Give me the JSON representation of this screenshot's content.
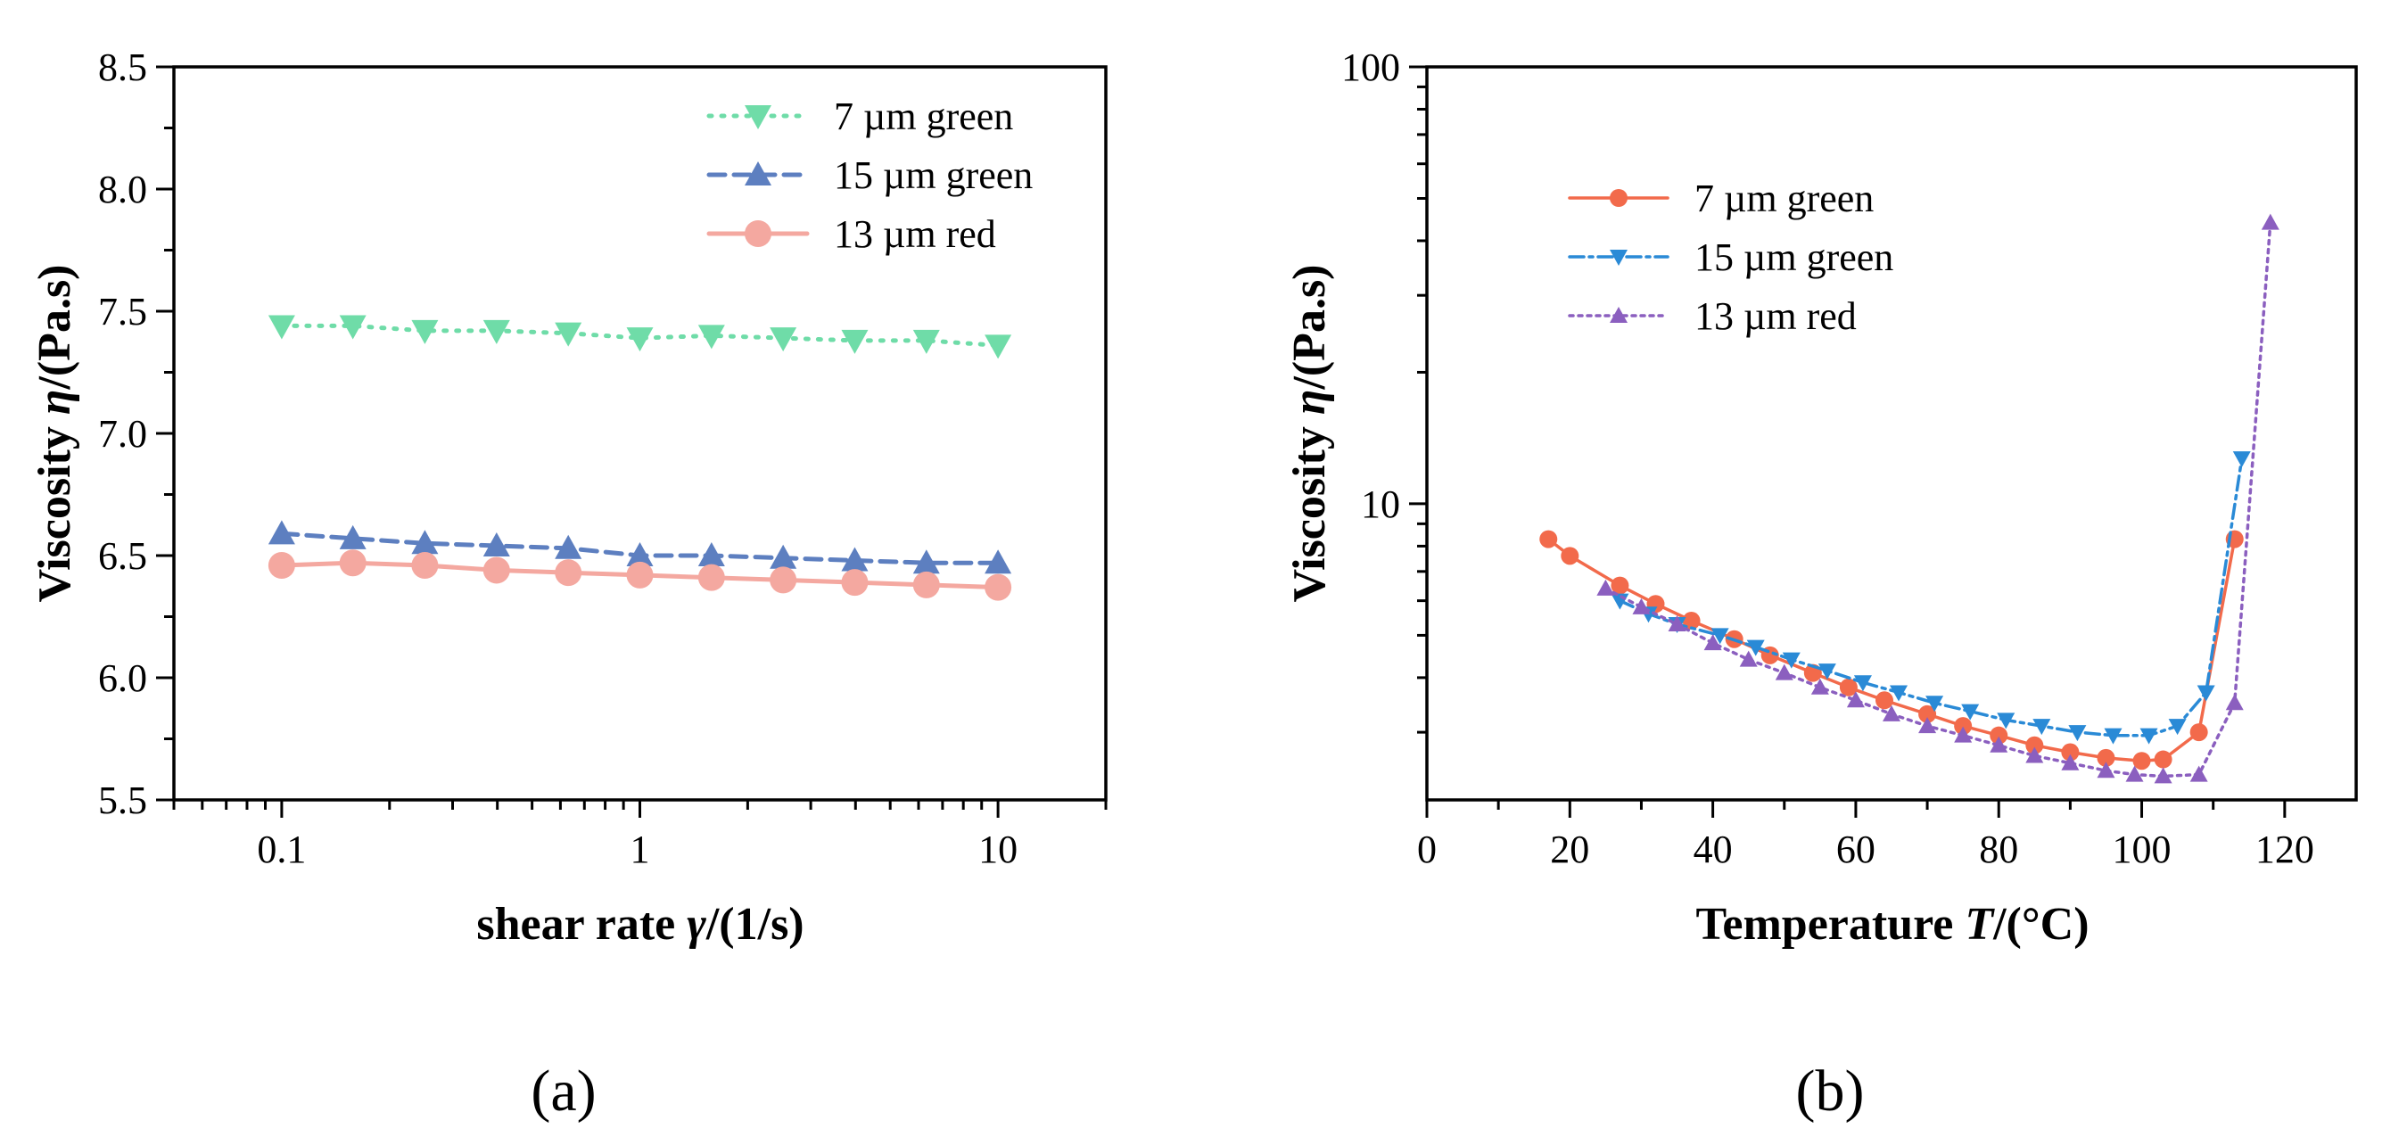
{
  "chart_data": [
    {
      "type": "line",
      "panel_label": "(a)",
      "xscale": "log",
      "xlim": [
        0.05,
        20
      ],
      "ylim": [
        5.5,
        8.5
      ],
      "xticks": [
        0.1,
        1,
        10
      ],
      "xtick_labels": [
        "0.1",
        "1",
        "10"
      ],
      "yticks": [
        5.5,
        6.0,
        6.5,
        7.0,
        7.5,
        8.0,
        8.5
      ],
      "ytick_labels": [
        "5.5",
        "6.0",
        "6.5",
        "7.0",
        "7.5",
        "8.0",
        "8.5"
      ],
      "xlabel": {
        "prefix": "shear rate ",
        "symbol": "γ",
        "suffix": "/(1/s)"
      },
      "ylabel": {
        "prefix": "Viscosity ",
        "symbol": "η",
        "suffix": "/(Pa.s)"
      },
      "legend_position": "top-right",
      "series": [
        {
          "name": "7 µm green",
          "color": "#6fdca8",
          "dash": "3 11",
          "marker": "tri-down",
          "x": [
            0.1,
            0.158,
            0.251,
            0.398,
            0.631,
            1.0,
            1.585,
            2.512,
            3.981,
            6.31,
            10.0
          ],
          "y": [
            7.44,
            7.44,
            7.42,
            7.42,
            7.41,
            7.39,
            7.4,
            7.39,
            7.38,
            7.38,
            7.36
          ]
        },
        {
          "name": "15 µm green",
          "color": "#5d7fc0",
          "dash": "18 10",
          "marker": "tri-up",
          "x": [
            0.1,
            0.158,
            0.251,
            0.398,
            0.631,
            1.0,
            1.585,
            2.512,
            3.981,
            6.31,
            10.0
          ],
          "y": [
            6.59,
            6.57,
            6.55,
            6.54,
            6.53,
            6.5,
            6.5,
            6.49,
            6.48,
            6.47,
            6.47
          ]
        },
        {
          "name": "13 µm red",
          "color": "#f4a8a0",
          "dash": "",
          "marker": "circle",
          "x": [
            0.1,
            0.158,
            0.251,
            0.398,
            0.631,
            1.0,
            1.585,
            2.512,
            3.981,
            6.31,
            10.0
          ],
          "y": [
            6.46,
            6.47,
            6.46,
            6.44,
            6.43,
            6.42,
            6.41,
            6.4,
            6.39,
            6.38,
            6.37
          ]
        }
      ]
    },
    {
      "type": "line",
      "panel_label": "(b)",
      "yscale": "log",
      "xlim": [
        0,
        130
      ],
      "ylim": [
        2.1,
        100
      ],
      "xticks": [
        0,
        20,
        40,
        60,
        80,
        100,
        120
      ],
      "xtick_labels": [
        "0",
        "20",
        "40",
        "60",
        "80",
        "100",
        "120"
      ],
      "yticks": [
        10,
        100
      ],
      "ytick_labels": [
        "10",
        "100"
      ],
      "xlabel": {
        "prefix": "Temperature ",
        "symbol": "T",
        "suffix": "/(°C)"
      },
      "ylabel": {
        "prefix": "Viscosity ",
        "symbol": "η",
        "suffix": "/(Pa.s)"
      },
      "legend_position": "top-left",
      "series": [
        {
          "name": "7 µm green",
          "color": "#f26a4b",
          "dash": "",
          "marker": "circle",
          "x": [
            17,
            20,
            27,
            32,
            37,
            43,
            48,
            54,
            59,
            64,
            70,
            75,
            80,
            85,
            90,
            95,
            100,
            103,
            108,
            113
          ],
          "y": [
            8.3,
            7.6,
            6.5,
            5.9,
            5.4,
            4.9,
            4.5,
            4.1,
            3.8,
            3.55,
            3.3,
            3.1,
            2.95,
            2.8,
            2.7,
            2.62,
            2.58,
            2.6,
            3.0,
            8.3
          ]
        },
        {
          "name": "15 µm green",
          "color": "#2a8ad6",
          "dash": "16 6 4 6",
          "marker": "tri-down",
          "x": [
            27,
            31,
            35,
            41,
            46,
            51,
            56,
            61,
            66,
            71,
            76,
            81,
            86,
            91,
            96,
            101,
            105,
            109,
            114
          ],
          "y": [
            6.0,
            5.6,
            5.3,
            5.0,
            4.7,
            4.4,
            4.15,
            3.9,
            3.7,
            3.5,
            3.35,
            3.2,
            3.1,
            3.0,
            2.95,
            2.95,
            3.1,
            3.7,
            12.7
          ]
        },
        {
          "name": "13 µm red",
          "color": "#8b5fbf",
          "dash": "4 6",
          "marker": "tri-up",
          "x": [
            25,
            30,
            35,
            40,
            45,
            50,
            55,
            60,
            65,
            70,
            75,
            80,
            85,
            90,
            95,
            99,
            103,
            108,
            113,
            118
          ],
          "y": [
            6.4,
            5.8,
            5.3,
            4.8,
            4.4,
            4.1,
            3.8,
            3.55,
            3.3,
            3.1,
            2.95,
            2.8,
            2.65,
            2.55,
            2.45,
            2.4,
            2.38,
            2.4,
            3.5,
            44
          ]
        }
      ]
    }
  ]
}
